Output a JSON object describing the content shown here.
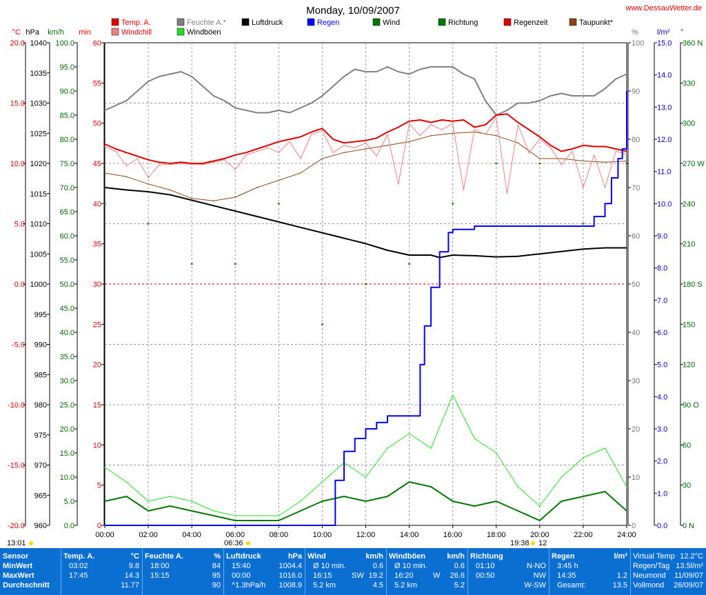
{
  "title": "Monday, 10/09/2007",
  "site": "www.DessauWetter.de",
  "colors": {
    "temp": "#e00000",
    "windchill": "#f08080",
    "humidity": "#808080",
    "gusts": "#22dd22",
    "pressure": "#000000",
    "rain": "#0000ff",
    "wind": "#007700",
    "direction": "#007700",
    "raintime": "#e00000",
    "dewpoint": "#8b4513",
    "axisRed": "#e00000",
    "axisGreen": "#006600",
    "axisBlue": "#0000cc",
    "grid": "#999999",
    "panel": "#0a6fd1"
  },
  "legend": [
    {
      "label": "Temp. A.",
      "color": "#e00000",
      "text_color": "#e00000"
    },
    {
      "label": "Feuchte A.*",
      "color": "#808080",
      "text_color": "#808080"
    },
    {
      "label": "Luftdruck",
      "color": "#000000",
      "text_color": "#000000"
    },
    {
      "label": "Regen",
      "color": "#0000ff",
      "text_color": "#0000ff"
    },
    {
      "label": "Wind",
      "color": "#007700",
      "text_color": "#000000"
    },
    {
      "label": "Richtung",
      "color": "#007700",
      "text_color": "#000000"
    },
    {
      "label": "Regenzeit",
      "color": "#e00000",
      "text_color": "#000000"
    },
    {
      "label": "Taupunkt*",
      "color": "#8b4513",
      "text_color": "#000000"
    },
    {
      "label": "Windchill",
      "color": "#f08080",
      "text_color": "#e00000"
    },
    {
      "label": "Windböen",
      "color": "#22dd22",
      "text_color": "#000000"
    }
  ],
  "chart_data": {
    "type": "line",
    "x_axis": {
      "ticks": [
        "00:00",
        "02:00",
        "04:00",
        "06:00",
        "08:00",
        "10:00",
        "12:00",
        "14:00",
        "16:00",
        "18:00",
        "20:00",
        "22:00",
        "24:00"
      ],
      "range_hours": [
        0,
        24
      ]
    },
    "axes": [
      {
        "unit": "°C",
        "min": -20,
        "max": 20,
        "ticks": [
          "20.0",
          "15.0",
          "10.0",
          "5.0",
          "0.0",
          "-5.0",
          "-10.0",
          "-15.0",
          "-20.0"
        ]
      },
      {
        "unit": "hPa",
        "min": 960,
        "max": 1040,
        "ticks": [
          "1040",
          "1035",
          "1030",
          "1025",
          "1020",
          "1015",
          "1010",
          "1005",
          "1000",
          "995",
          "990",
          "985",
          "980",
          "975",
          "970",
          "965",
          "960"
        ]
      },
      {
        "unit": "km/h",
        "min": 0,
        "max": 100,
        "ticks": [
          "100.0",
          "95.0",
          "90.0",
          "85.0",
          "80.0",
          "75.0",
          "70.0",
          "65.0",
          "60.0",
          "55.0",
          "50.0",
          "45.0",
          "40.0",
          "35.0",
          "30.0",
          "25.0",
          "20.0",
          "15.0",
          "10.0",
          "5.0",
          "0.0"
        ]
      },
      {
        "unit": "min",
        "min": 0,
        "max": 60,
        "ticks": [
          "60",
          "55",
          "50",
          "45",
          "40",
          "35",
          "30",
          "25",
          "20",
          "15",
          "10",
          "5",
          "0"
        ]
      },
      {
        "unit": "%",
        "min": 0,
        "max": 100,
        "ticks": [
          "100",
          "90",
          "80",
          "70",
          "60",
          "50",
          "40",
          "30",
          "20",
          "10",
          "0"
        ]
      },
      {
        "unit": "l/m²",
        "min": 0,
        "max": 15,
        "ticks": [
          "15.0",
          "14.0",
          "13.0",
          "12.0",
          "11.0",
          "10.0",
          "9.0",
          "8.0",
          "7.0",
          "6.0",
          "5.0",
          "4.0",
          "3.0",
          "2.0",
          "1.0",
          "0.0"
        ]
      },
      {
        "unit": "°",
        "min": 0,
        "max": 360,
        "ticks": [
          "360 N",
          "330",
          "300",
          "270 W",
          "240",
          "210",
          "180 S",
          "150",
          "120",
          "90 O",
          "60",
          "30",
          "0 N"
        ]
      }
    ],
    "series": [
      {
        "name": "Temp. A.",
        "unit": "°C",
        "x": [
          0,
          0.5,
          1,
          1.5,
          2,
          2.5,
          3,
          3.5,
          4,
          4.5,
          5,
          5.5,
          6,
          6.5,
          7,
          7.5,
          8,
          8.5,
          9,
          9.5,
          10,
          10.5,
          11,
          11.5,
          12,
          12.5,
          13,
          13.5,
          14,
          14.5,
          15,
          15.5,
          16,
          16.5,
          17,
          17.5,
          18,
          18.5,
          19,
          19.5,
          20,
          20.5,
          21,
          21.5,
          22,
          22.5,
          23,
          23.5,
          24
        ],
        "y": [
          11.6,
          11.2,
          10.9,
          10.6,
          10.3,
          10.1,
          10.0,
          10.1,
          10.0,
          10.0,
          10.2,
          10.4,
          10.7,
          10.9,
          11.2,
          11.5,
          11.8,
          12.0,
          12.2,
          12.6,
          12.9,
          12.0,
          11.7,
          11.8,
          11.9,
          12.1,
          12.6,
          13.0,
          13.5,
          13.6,
          13.4,
          13.6,
          13.5,
          13.6,
          13.0,
          13.2,
          14.0,
          14.1,
          13.4,
          12.8,
          12.2,
          11.5,
          11.0,
          11.2,
          11.5,
          11.4,
          11.4,
          11.2,
          11.0
        ]
      },
      {
        "name": "Windchill",
        "unit": "°C",
        "x": [
          0,
          0.5,
          1,
          1.5,
          2,
          2.5,
          3,
          3.5,
          4,
          4.5,
          5,
          5.5,
          6,
          6.5,
          7,
          7.5,
          8,
          8.5,
          9,
          9.5,
          10,
          10.5,
          11,
          11.5,
          12,
          12.5,
          13,
          13.5,
          14,
          14.5,
          15,
          15.5,
          16,
          16.5,
          17,
          17.5,
          18,
          18.5,
          19,
          19.5,
          20,
          20.5,
          21,
          21.5,
          22,
          22.5,
          23,
          23.5,
          24
        ],
        "y": [
          11.4,
          11.0,
          9.8,
          10.4,
          8.8,
          9.9,
          9.9,
          10.0,
          9.9,
          9.9,
          10.1,
          10.3,
          9.5,
          10.7,
          11.0,
          11.3,
          10.9,
          11.8,
          10.4,
          12.4,
          12.7,
          10.9,
          11.5,
          11.3,
          11.7,
          10.6,
          12.4,
          8.3,
          13.3,
          12.3,
          13.2,
          12.8,
          13.3,
          7.8,
          12.8,
          12.4,
          13.8,
          7.5,
          13.2,
          10.9,
          12.0,
          11.3,
          9.9,
          11.0,
          8.0,
          10.7,
          8.0,
          11.0,
          10.8
        ]
      },
      {
        "name": "Taupunkt*",
        "unit": "°C",
        "x": [
          0,
          1,
          2,
          3,
          4,
          5,
          6,
          7,
          8,
          9,
          10,
          11,
          12,
          13,
          14,
          15,
          16,
          17,
          18,
          19,
          20,
          21,
          22,
          23,
          24
        ],
        "y": [
          9.2,
          8.9,
          8.3,
          7.8,
          7.1,
          6.9,
          7.2,
          8.0,
          8.6,
          9.2,
          10.4,
          10.9,
          11.2,
          11.5,
          11.8,
          12.3,
          12.5,
          12.6,
          12.3,
          11.7,
          10.4,
          10.4,
          10.2,
          10.1,
          10.2
        ]
      },
      {
        "name": "Feuchte A.*",
        "unit": "%",
        "x": [
          0,
          0.5,
          1,
          1.5,
          2,
          2.5,
          3,
          3.5,
          4,
          4.5,
          5,
          5.5,
          6,
          6.5,
          7,
          7.5,
          8,
          8.5,
          9,
          9.5,
          10,
          10.5,
          11,
          11.5,
          12,
          12.5,
          13,
          13.5,
          14,
          14.5,
          15,
          15.5,
          16,
          16.5,
          17,
          17.5,
          18,
          18.5,
          19,
          19.5,
          20,
          20.5,
          21,
          21.5,
          22,
          22.5,
          23,
          23.5,
          24
        ],
        "y": [
          86,
          87,
          88,
          90,
          92,
          93,
          93.5,
          94,
          93,
          91,
          89,
          88,
          86.5,
          86,
          85.5,
          85.5,
          86,
          85.5,
          86.5,
          87.5,
          89,
          91,
          93,
          94.5,
          94,
          94,
          95,
          94,
          93.5,
          94.5,
          95,
          95,
          95,
          93.5,
          92.5,
          88,
          85,
          86,
          87.5,
          87.5,
          88,
          89,
          89.5,
          89,
          89,
          89,
          90.5,
          92.5,
          93.5
        ]
      },
      {
        "name": "Luftdruck",
        "unit": "hPa",
        "x": [
          0,
          1,
          2,
          3,
          4,
          5,
          6,
          7,
          8,
          9,
          10,
          11,
          12,
          13,
          14,
          15,
          15.4,
          16,
          17,
          18,
          19,
          20,
          21,
          22,
          23,
          24
        ],
        "y": [
          1016.0,
          1015.6,
          1015.3,
          1014.8,
          1013.9,
          1013.0,
          1012.1,
          1011.2,
          1010.3,
          1009.4,
          1008.5,
          1007.6,
          1006.7,
          1005.6,
          1004.8,
          1004.8,
          1004.4,
          1004.8,
          1004.7,
          1004.5,
          1004.6,
          1005.0,
          1005.4,
          1005.8,
          1006.0,
          1006.0
        ]
      },
      {
        "name": "Regen",
        "unit": "l/m²",
        "x": [
          0,
          10,
          10.6,
          11,
          11.5,
          12,
          12.5,
          13,
          14,
          14.5,
          14.7,
          15,
          15.4,
          15.8,
          16,
          17,
          18,
          19,
          20,
          21,
          22,
          22.5,
          23,
          23.3,
          23.6,
          23.8,
          24
        ],
        "y": [
          0,
          0,
          1.4,
          2.3,
          2.7,
          3.0,
          3.2,
          3.4,
          3.4,
          5.0,
          6.2,
          7.4,
          8.5,
          9.1,
          9.2,
          9.3,
          9.3,
          9.3,
          9.3,
          9.3,
          9.3,
          9.6,
          10.0,
          10.8,
          11.4,
          11.7,
          13.5
        ]
      },
      {
        "name": "Wind",
        "unit": "km/h",
        "x": [
          0,
          1,
          2,
          3,
          4,
          5,
          6,
          7,
          8,
          9,
          10,
          11,
          12,
          13,
          14,
          15,
          16,
          17,
          18,
          19,
          20,
          21,
          22,
          23,
          24
        ],
        "y": [
          5,
          6,
          3,
          4,
          3,
          2,
          1,
          1,
          1,
          3,
          5,
          6,
          5,
          6,
          9,
          8,
          5,
          4,
          5,
          3,
          1,
          5,
          6,
          7,
          3
        ]
      },
      {
        "name": "Windböen",
        "unit": "km/h",
        "x": [
          0,
          1,
          2,
          3,
          4,
          5,
          6,
          7,
          8,
          9,
          10,
          11,
          12,
          13,
          14,
          15,
          16,
          17,
          18,
          19,
          20,
          21,
          22,
          23,
          24
        ],
        "y": [
          12,
          9,
          5,
          6,
          5,
          3,
          2,
          2,
          2,
          5,
          9,
          13,
          10,
          16,
          19,
          16,
          27,
          18,
          15,
          8,
          4,
          10,
          14,
          16,
          8
        ]
      },
      {
        "name": "Richtung",
        "unit": "°",
        "x": [
          0,
          2,
          4,
          6,
          8,
          10,
          12,
          14,
          16,
          18,
          20,
          22,
          24
        ],
        "y": [
          240,
          225,
          195,
          195,
          240,
          150,
          180,
          195,
          240,
          270,
          270,
          225,
          270
        ]
      }
    ]
  },
  "time_markers": {
    "left": "13:01",
    "sunrise": "06:36",
    "sunset": "19:38",
    "right": "12"
  },
  "summary": {
    "sensor": {
      "title": "Sensor",
      "rows": [
        "MinWert",
        "MaxWert",
        "Durchschnitt"
      ]
    },
    "temp": {
      "title": "Temp. A.",
      "unit": "°C",
      "rows": [
        [
          "03:02",
          "9.8"
        ],
        [
          "17:45",
          "14.3"
        ],
        [
          "",
          "11.77"
        ]
      ]
    },
    "feuchte": {
      "title": "Feuchte A.",
      "unit": "%",
      "rows": [
        [
          "18:00",
          "84"
        ],
        [
          "15:15",
          "95"
        ],
        [
          "",
          "90"
        ]
      ]
    },
    "luftdruck": {
      "title": "Luftdruck",
      "unit": "hPa",
      "rows": [
        [
          "15:40",
          "1004.4"
        ],
        [
          "00:00",
          "1016.0"
        ],
        [
          "^1.3hPa/h",
          "1008.9"
        ]
      ]
    },
    "wind": {
      "title": "Wind",
      "unit": "km/h",
      "rows": [
        [
          "Ø 10 min.",
          "",
          "0.6"
        ],
        [
          "16:15",
          "SW",
          "19.2"
        ],
        [
          "5.2 km",
          "",
          "4.5"
        ]
      ]
    },
    "windboeen": {
      "title": "Windböen",
      "unit": "km/h",
      "rows": [
        [
          "Ø 10 min.",
          "",
          "0.6"
        ],
        [
          "16:20",
          "W",
          "26.6"
        ],
        [
          "5.2 km",
          "",
          "5.2"
        ]
      ]
    },
    "richtung": {
      "title": "Richtung",
      "unit": "",
      "rows": [
        [
          "01:10",
          "N-NO"
        ],
        [
          "00:50",
          "NW"
        ],
        [
          "",
          "W-SW"
        ]
      ]
    },
    "regen": {
      "title": "Regen",
      "unit": "l/m²",
      "rows": [
        [
          "3:45 h",
          ""
        ],
        [
          "14:35",
          "1.2"
        ],
        [
          "Gesamt:",
          "13.5"
        ]
      ]
    },
    "extra": {
      "rows": [
        [
          "Virtual Temp",
          "12.2°C"
        ],
        [
          "Regen/Tag",
          "13.5l/m²"
        ],
        [
          "Neumond",
          "11/09/07"
        ],
        [
          "Vollmond",
          "26/09/07"
        ]
      ]
    }
  }
}
